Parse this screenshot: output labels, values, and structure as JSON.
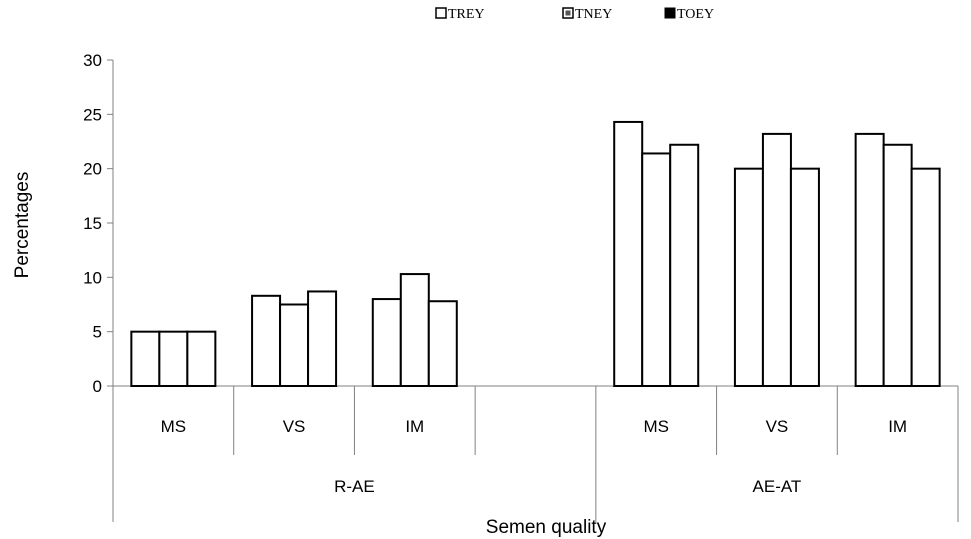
{
  "chart_data": {
    "type": "bar",
    "title": "",
    "xlabel": "Semen quality",
    "ylabel": "Percentages",
    "ylim": [
      0,
      30
    ],
    "yticks": [
      0,
      5,
      10,
      15,
      20,
      25,
      30
    ],
    "legend": {
      "placement": "top",
      "entries": [
        "TREY",
        "TNEY",
        "TOEY"
      ]
    },
    "grid": false,
    "groups": [
      {
        "label": "R-AE",
        "categories": [
          "MS",
          "VS",
          "IM"
        ]
      },
      {
        "label": "AE-AT",
        "categories": [
          "MS",
          "VS",
          "IM"
        ]
      }
    ],
    "categories": [
      "MS",
      "VS",
      "IM",
      "",
      "MS",
      "VS",
      "IM"
    ],
    "series": [
      {
        "name": "TREY",
        "values": [
          5.0,
          8.3,
          8.0,
          null,
          24.3,
          20.0,
          23.2
        ]
      },
      {
        "name": "TNEY",
        "values": [
          5.0,
          7.5,
          10.3,
          null,
          21.4,
          23.2,
          22.2
        ]
      },
      {
        "name": "TOEY",
        "values": [
          5.0,
          8.7,
          7.8,
          null,
          22.2,
          20.0,
          20.0
        ]
      }
    ]
  }
}
